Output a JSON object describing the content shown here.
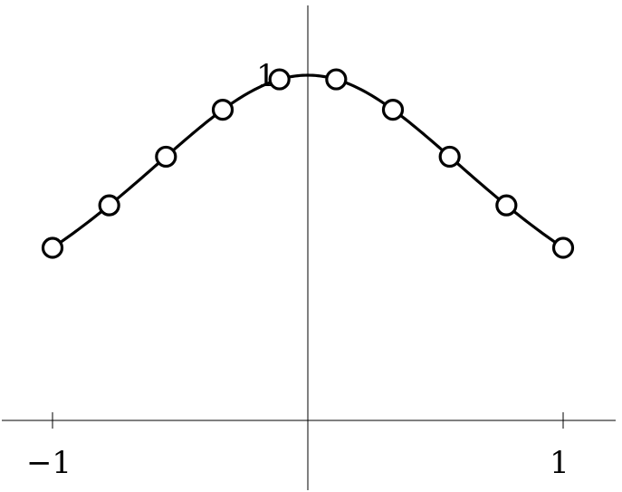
{
  "chart_data": {
    "type": "line",
    "title": "",
    "xlabel": "",
    "ylabel": "",
    "xlim": [
      -1,
      1
    ],
    "ylim": [
      0,
      1
    ],
    "grid": false,
    "x_ticks": [
      {
        "value": -1,
        "label": "−1"
      },
      {
        "value": 1,
        "label": "1"
      }
    ],
    "y_ticks": [
      {
        "value": 1,
        "label": "1"
      }
    ],
    "curve": {
      "function": "1/(1+x^2)",
      "x_range": [
        -1,
        1
      ]
    },
    "series": [
      {
        "marker": "open-circle",
        "x": [
          -1,
          -0.7778,
          -0.5556,
          -0.3333,
          -0.1111,
          0.1111,
          0.3333,
          0.5556,
          0.7778,
          1
        ],
        "y": [
          0.5,
          0.623,
          0.764,
          0.9,
          0.988,
          0.988,
          0.9,
          0.764,
          0.623,
          0.5
        ]
      }
    ],
    "colors": {
      "axis": "#000000",
      "curve": "#000000",
      "marker": "#000000"
    }
  }
}
